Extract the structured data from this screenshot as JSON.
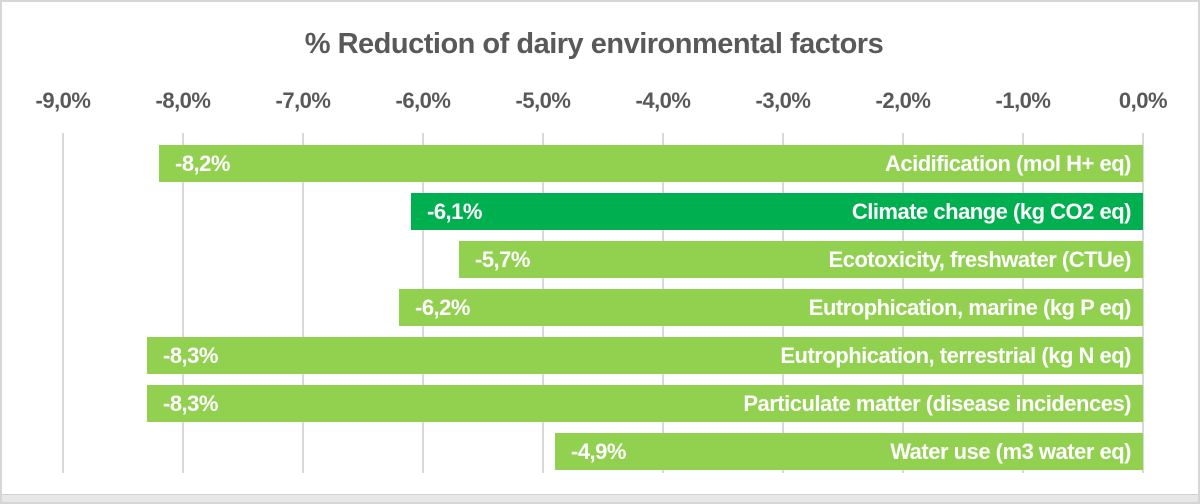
{
  "chart_data": {
    "type": "bar",
    "orientation": "horizontal",
    "title": "% Reduction of dairy environmental factors",
    "xlabel": "",
    "ylabel": "",
    "xlim": [
      -9.65,
      0.5
    ],
    "grid": "vertical",
    "legend": "none",
    "x_ticks": [
      {
        "value": -9,
        "label": "-9,0%"
      },
      {
        "value": -8,
        "label": "-8,0%"
      },
      {
        "value": -7,
        "label": "-7,0%"
      },
      {
        "value": -6,
        "label": "-6,0%"
      },
      {
        "value": -5,
        "label": "-5,0%"
      },
      {
        "value": -4,
        "label": "-4,0%"
      },
      {
        "value": -3,
        "label": "-3,0%"
      },
      {
        "value": -2,
        "label": "-2,0%"
      },
      {
        "value": -1,
        "label": "-1,0%"
      },
      {
        "value": 0,
        "label": "0,0%"
      }
    ],
    "bars": [
      {
        "category": "Acidification (mol H+ eq)",
        "value": -8.2,
        "value_label": "-8,2%",
        "color": "light_green"
      },
      {
        "category": "Climate change (kg CO2 eq)",
        "value": -6.1,
        "value_label": "-6,1%",
        "color": "dark_green"
      },
      {
        "category": "Ecotoxicity, freshwater (CTUe)",
        "value": -5.7,
        "value_label": "-5,7%",
        "color": "light_green"
      },
      {
        "category": "Eutrophication, marine (kg P eq)",
        "value": -6.2,
        "value_label": "-6,2%",
        "color": "light_green"
      },
      {
        "category": "Eutrophication, terrestrial (kg N eq)",
        "value": -8.3,
        "value_label": "-8,3%",
        "color": "light_green"
      },
      {
        "category": "Particulate matter (disease incidences)",
        "value": -8.3,
        "value_label": "-8,3%",
        "color": "light_green"
      },
      {
        "category": "Water use (m3 water eq)",
        "value": -4.9,
        "value_label": "-4,9%",
        "color": "light_green"
      }
    ],
    "colors": {
      "light_green": "#92D050",
      "dark_green": "#00B050",
      "title_text": "#595959",
      "axis_text": "#595959",
      "gridline": "#D9D9D9",
      "bar_label_text": "#FFFFFF"
    }
  }
}
